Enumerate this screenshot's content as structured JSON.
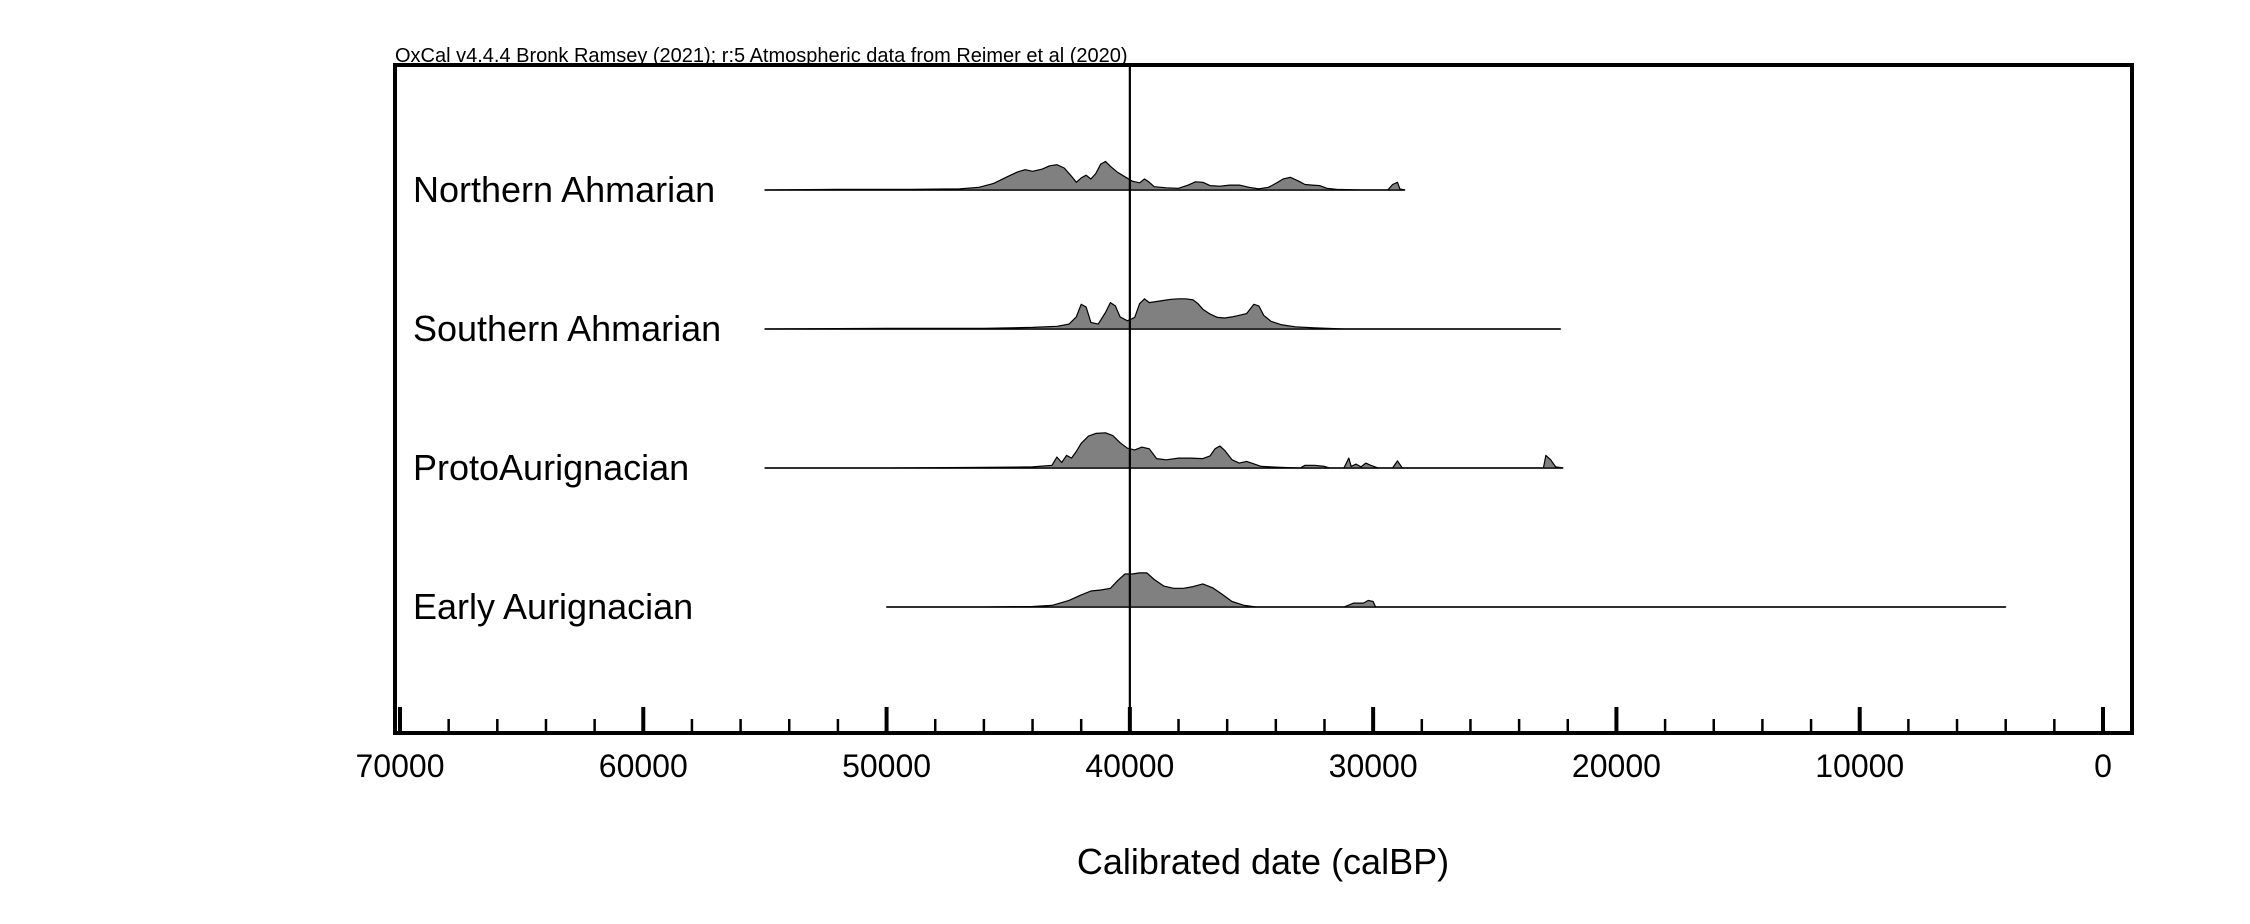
{
  "chart_data": {
    "type": "area",
    "header": "OxCal v4.4.4 Bronk Ramsey (2021); r:5 Atmospheric data from Reimer et al (2020)",
    "xlabel": "Calibrated date (calBP)",
    "xlim": [
      70000,
      0
    ],
    "x_reversed": true,
    "major_ticks": [
      70000,
      60000,
      50000,
      40000,
      30000,
      20000,
      10000,
      0
    ],
    "major_tick_labels": [
      "70000",
      "60000",
      "50000",
      "40000",
      "30000",
      "20000",
      "10000",
      "0"
    ],
    "minor_tick_step": 2000,
    "reference_line_x": 40000,
    "fill_color": "#808080",
    "series": [
      {
        "name": "Northern Ahmarian",
        "range": [
          55000,
          28700
        ],
        "density": [
          [
            55000,
            0.0
          ],
          [
            52000,
            0.01
          ],
          [
            49000,
            0.01
          ],
          [
            47000,
            0.02
          ],
          [
            46200,
            0.05
          ],
          [
            45600,
            0.12
          ],
          [
            45000,
            0.25
          ],
          [
            44600,
            0.33
          ],
          [
            44300,
            0.37
          ],
          [
            44000,
            0.34
          ],
          [
            43600,
            0.38
          ],
          [
            43300,
            0.44
          ],
          [
            43000,
            0.46
          ],
          [
            42700,
            0.4
          ],
          [
            42400,
            0.25
          ],
          [
            42200,
            0.14
          ],
          [
            42000,
            0.22
          ],
          [
            41800,
            0.27
          ],
          [
            41600,
            0.2
          ],
          [
            41400,
            0.3
          ],
          [
            41200,
            0.47
          ],
          [
            41000,
            0.52
          ],
          [
            40800,
            0.43
          ],
          [
            40500,
            0.32
          ],
          [
            40200,
            0.24
          ],
          [
            39900,
            0.16
          ],
          [
            39600,
            0.13
          ],
          [
            39400,
            0.2
          ],
          [
            39200,
            0.14
          ],
          [
            39000,
            0.06
          ],
          [
            38500,
            0.04
          ],
          [
            38000,
            0.03
          ],
          [
            37600,
            0.09
          ],
          [
            37300,
            0.15
          ],
          [
            37000,
            0.14
          ],
          [
            36700,
            0.08
          ],
          [
            36300,
            0.07
          ],
          [
            35900,
            0.09
          ],
          [
            35500,
            0.09
          ],
          [
            35100,
            0.05
          ],
          [
            34700,
            0.02
          ],
          [
            34300,
            0.05
          ],
          [
            34000,
            0.12
          ],
          [
            33700,
            0.2
          ],
          [
            33400,
            0.23
          ],
          [
            33100,
            0.17
          ],
          [
            32800,
            0.1
          ],
          [
            32500,
            0.09
          ],
          [
            32200,
            0.08
          ],
          [
            31900,
            0.03
          ],
          [
            31500,
            0.01
          ],
          [
            30500,
            0.0
          ],
          [
            29400,
            0.0
          ],
          [
            29200,
            0.1
          ],
          [
            29000,
            0.14
          ],
          [
            28900,
            0.02
          ],
          [
            28700,
            0.0
          ]
        ]
      },
      {
        "name": "Southern Ahmarian",
        "range": [
          55000,
          22300
        ],
        "density": [
          [
            55000,
            0.0
          ],
          [
            50000,
            0.01
          ],
          [
            46000,
            0.01
          ],
          [
            44000,
            0.03
          ],
          [
            43000,
            0.05
          ],
          [
            42500,
            0.09
          ],
          [
            42200,
            0.22
          ],
          [
            42000,
            0.45
          ],
          [
            41800,
            0.4
          ],
          [
            41600,
            0.12
          ],
          [
            41300,
            0.09
          ],
          [
            41000,
            0.3
          ],
          [
            40800,
            0.48
          ],
          [
            40600,
            0.42
          ],
          [
            40400,
            0.22
          ],
          [
            40100,
            0.15
          ],
          [
            39800,
            0.21
          ],
          [
            39600,
            0.46
          ],
          [
            39400,
            0.55
          ],
          [
            39200,
            0.48
          ],
          [
            38900,
            0.5
          ],
          [
            38600,
            0.52
          ],
          [
            38300,
            0.54
          ],
          [
            38000,
            0.55
          ],
          [
            37700,
            0.55
          ],
          [
            37400,
            0.53
          ],
          [
            37200,
            0.46
          ],
          [
            37000,
            0.36
          ],
          [
            36700,
            0.27
          ],
          [
            36400,
            0.21
          ],
          [
            36100,
            0.2
          ],
          [
            35800,
            0.22
          ],
          [
            35500,
            0.25
          ],
          [
            35200,
            0.28
          ],
          [
            34900,
            0.45
          ],
          [
            34700,
            0.42
          ],
          [
            34500,
            0.25
          ],
          [
            34200,
            0.14
          ],
          [
            33800,
            0.08
          ],
          [
            33200,
            0.04
          ],
          [
            32400,
            0.02
          ],
          [
            31200,
            0.0
          ],
          [
            22300,
            0.0
          ]
        ]
      },
      {
        "name": "ProtoAurignacian",
        "range": [
          55000,
          22200
        ],
        "density": [
          [
            55000,
            0.0
          ],
          [
            50000,
            0.0
          ],
          [
            46000,
            0.01
          ],
          [
            44000,
            0.02
          ],
          [
            43200,
            0.05
          ],
          [
            43000,
            0.2
          ],
          [
            42800,
            0.1
          ],
          [
            42600,
            0.23
          ],
          [
            42400,
            0.18
          ],
          [
            42200,
            0.3
          ],
          [
            42000,
            0.45
          ],
          [
            41700,
            0.58
          ],
          [
            41400,
            0.63
          ],
          [
            41000,
            0.64
          ],
          [
            40700,
            0.59
          ],
          [
            40400,
            0.46
          ],
          [
            40100,
            0.36
          ],
          [
            39800,
            0.33
          ],
          [
            39500,
            0.38
          ],
          [
            39200,
            0.35
          ],
          [
            38900,
            0.17
          ],
          [
            38500,
            0.15
          ],
          [
            38000,
            0.18
          ],
          [
            37500,
            0.18
          ],
          [
            37000,
            0.17
          ],
          [
            36700,
            0.22
          ],
          [
            36500,
            0.35
          ],
          [
            36300,
            0.4
          ],
          [
            36100,
            0.32
          ],
          [
            35800,
            0.15
          ],
          [
            35500,
            0.09
          ],
          [
            35200,
            0.12
          ],
          [
            35000,
            0.09
          ],
          [
            34600,
            0.03
          ],
          [
            33800,
            0.01
          ],
          [
            33000,
            0.0
          ],
          [
            32800,
            0.05
          ],
          [
            32400,
            0.05
          ],
          [
            32000,
            0.03
          ],
          [
            31800,
            0.0
          ],
          [
            31200,
            0.0
          ],
          [
            31000,
            0.18
          ],
          [
            30900,
            0.03
          ],
          [
            30700,
            0.07
          ],
          [
            30500,
            0.02
          ],
          [
            30300,
            0.09
          ],
          [
            30100,
            0.05
          ],
          [
            29800,
            0.0
          ],
          [
            29200,
            0.0
          ],
          [
            29000,
            0.13
          ],
          [
            28800,
            0.0
          ],
          [
            23000,
            0.0
          ],
          [
            22900,
            0.23
          ],
          [
            22700,
            0.15
          ],
          [
            22500,
            0.02
          ],
          [
            22200,
            0.0
          ]
        ]
      },
      {
        "name": "Early Aurignacian",
        "range": [
          50000,
          4000
        ],
        "density": [
          [
            50000,
            0.0
          ],
          [
            46000,
            0.0
          ],
          [
            44000,
            0.01
          ],
          [
            43200,
            0.03
          ],
          [
            42500,
            0.12
          ],
          [
            42000,
            0.22
          ],
          [
            41600,
            0.29
          ],
          [
            41200,
            0.31
          ],
          [
            40800,
            0.34
          ],
          [
            40500,
            0.48
          ],
          [
            40200,
            0.6
          ],
          [
            39900,
            0.6
          ],
          [
            39600,
            0.62
          ],
          [
            39300,
            0.62
          ],
          [
            39000,
            0.5
          ],
          [
            38600,
            0.38
          ],
          [
            38200,
            0.34
          ],
          [
            37800,
            0.34
          ],
          [
            37400,
            0.37
          ],
          [
            37000,
            0.42
          ],
          [
            36600,
            0.35
          ],
          [
            36200,
            0.23
          ],
          [
            35800,
            0.1
          ],
          [
            35300,
            0.03
          ],
          [
            34800,
            0.0
          ],
          [
            31200,
            0.0
          ],
          [
            30800,
            0.07
          ],
          [
            30400,
            0.07
          ],
          [
            30200,
            0.12
          ],
          [
            30000,
            0.1
          ],
          [
            29900,
            0.0
          ],
          [
            4000,
            0.0
          ]
        ]
      }
    ]
  }
}
